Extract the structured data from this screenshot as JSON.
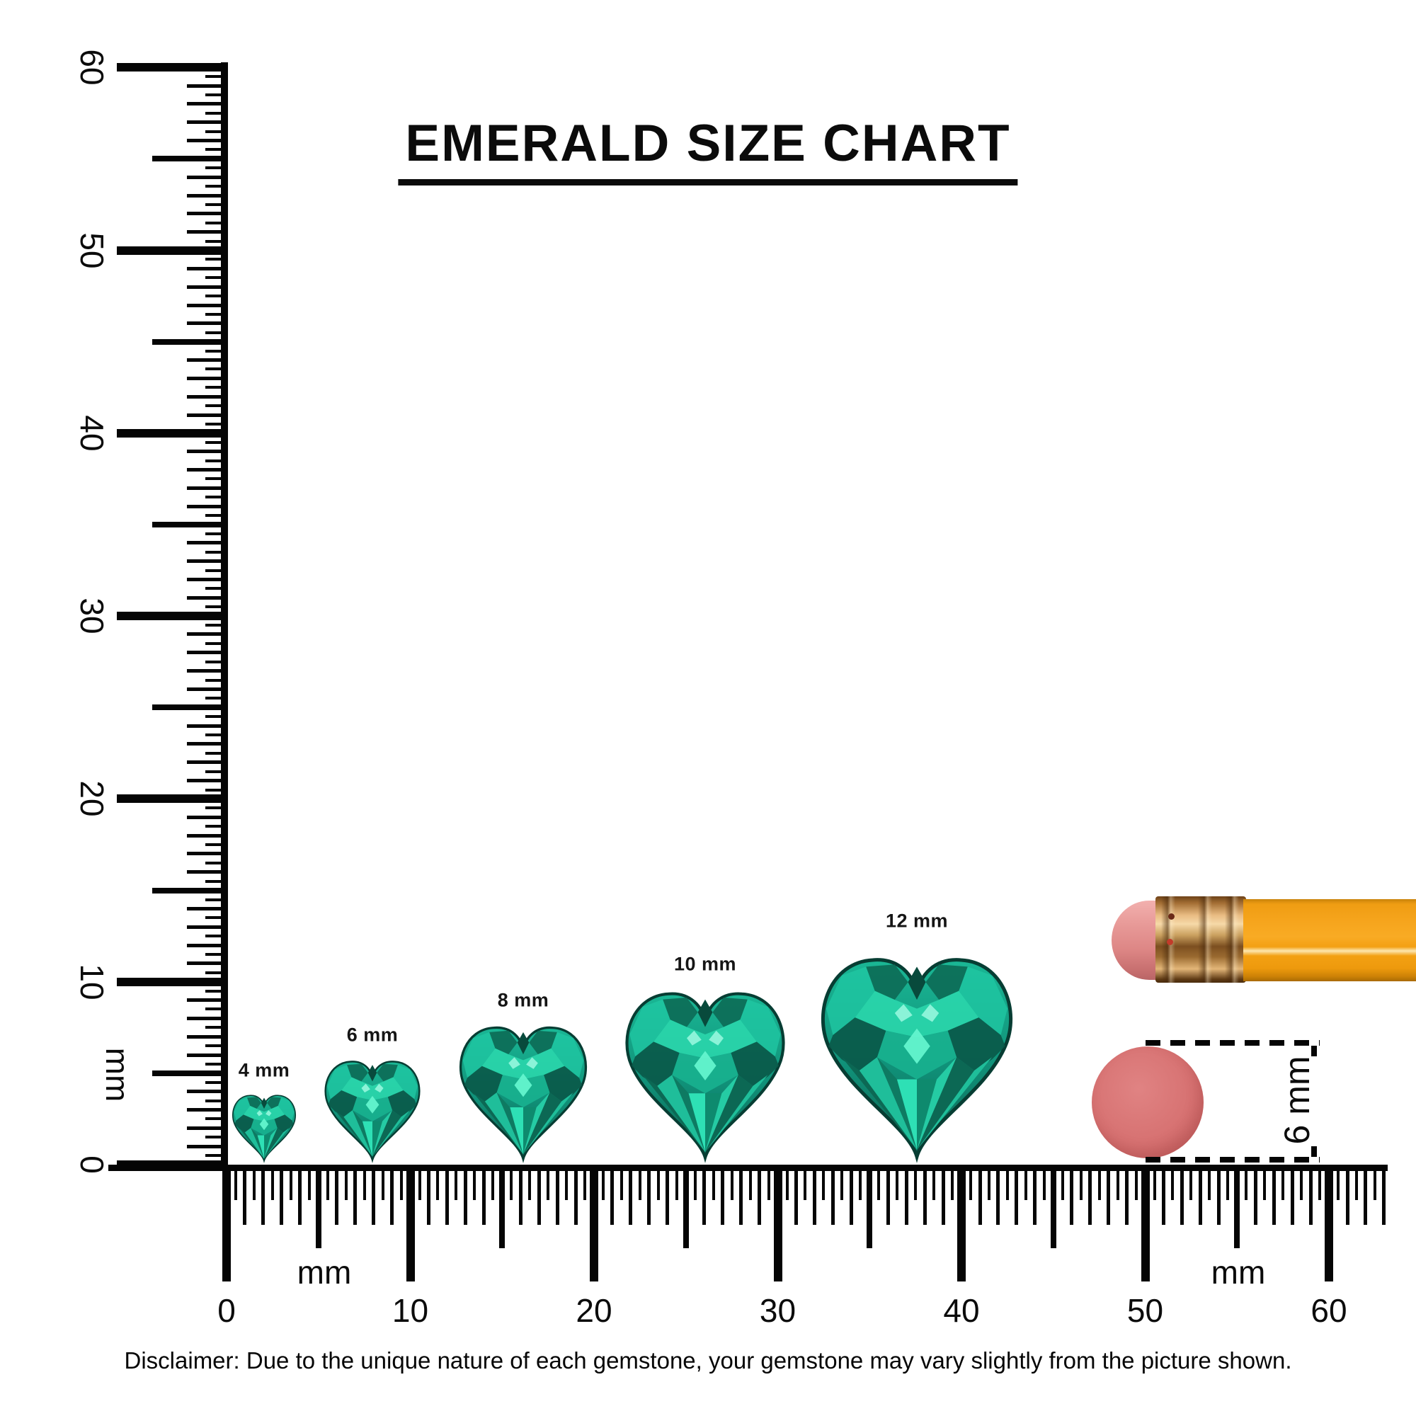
{
  "title": {
    "text": "EMERALD SIZE CHART"
  },
  "rulers": {
    "vertical": {
      "unit_label": "mm",
      "tick_labels": [
        "0",
        "10",
        "20",
        "30",
        "40",
        "50",
        "60"
      ]
    },
    "horizontal": {
      "unit_label_left": "mm",
      "unit_label_right": "mm",
      "tick_labels": [
        "0",
        "10",
        "20",
        "30",
        "40",
        "50",
        "60"
      ]
    }
  },
  "gems": [
    {
      "label": "4 mm",
      "size_mm": 4
    },
    {
      "label": "6 mm",
      "size_mm": 6
    },
    {
      "label": "8 mm",
      "size_mm": 8
    },
    {
      "label": "10 mm",
      "size_mm": 10
    },
    {
      "label": "12 mm",
      "size_mm": 12
    }
  ],
  "eraser_measurement": {
    "label": "6 mm",
    "diameter_mm": 6
  },
  "disclaimer": "Disclaimer: Due to the unique nature of each gemstone, your gemstone may vary slightly from the picture shown.",
  "colors": {
    "emerald_bright": "#35e3b8",
    "emerald_mid": "#14a287",
    "emerald_dark": "#0b5b4b",
    "pencil_body": "#f7a41f",
    "pencil_ferrule": "#c98a4b",
    "pencil_eraser_pink": "#e08c8c",
    "eraser_disc_pink": "#d66f6f",
    "ink": "#000000"
  }
}
